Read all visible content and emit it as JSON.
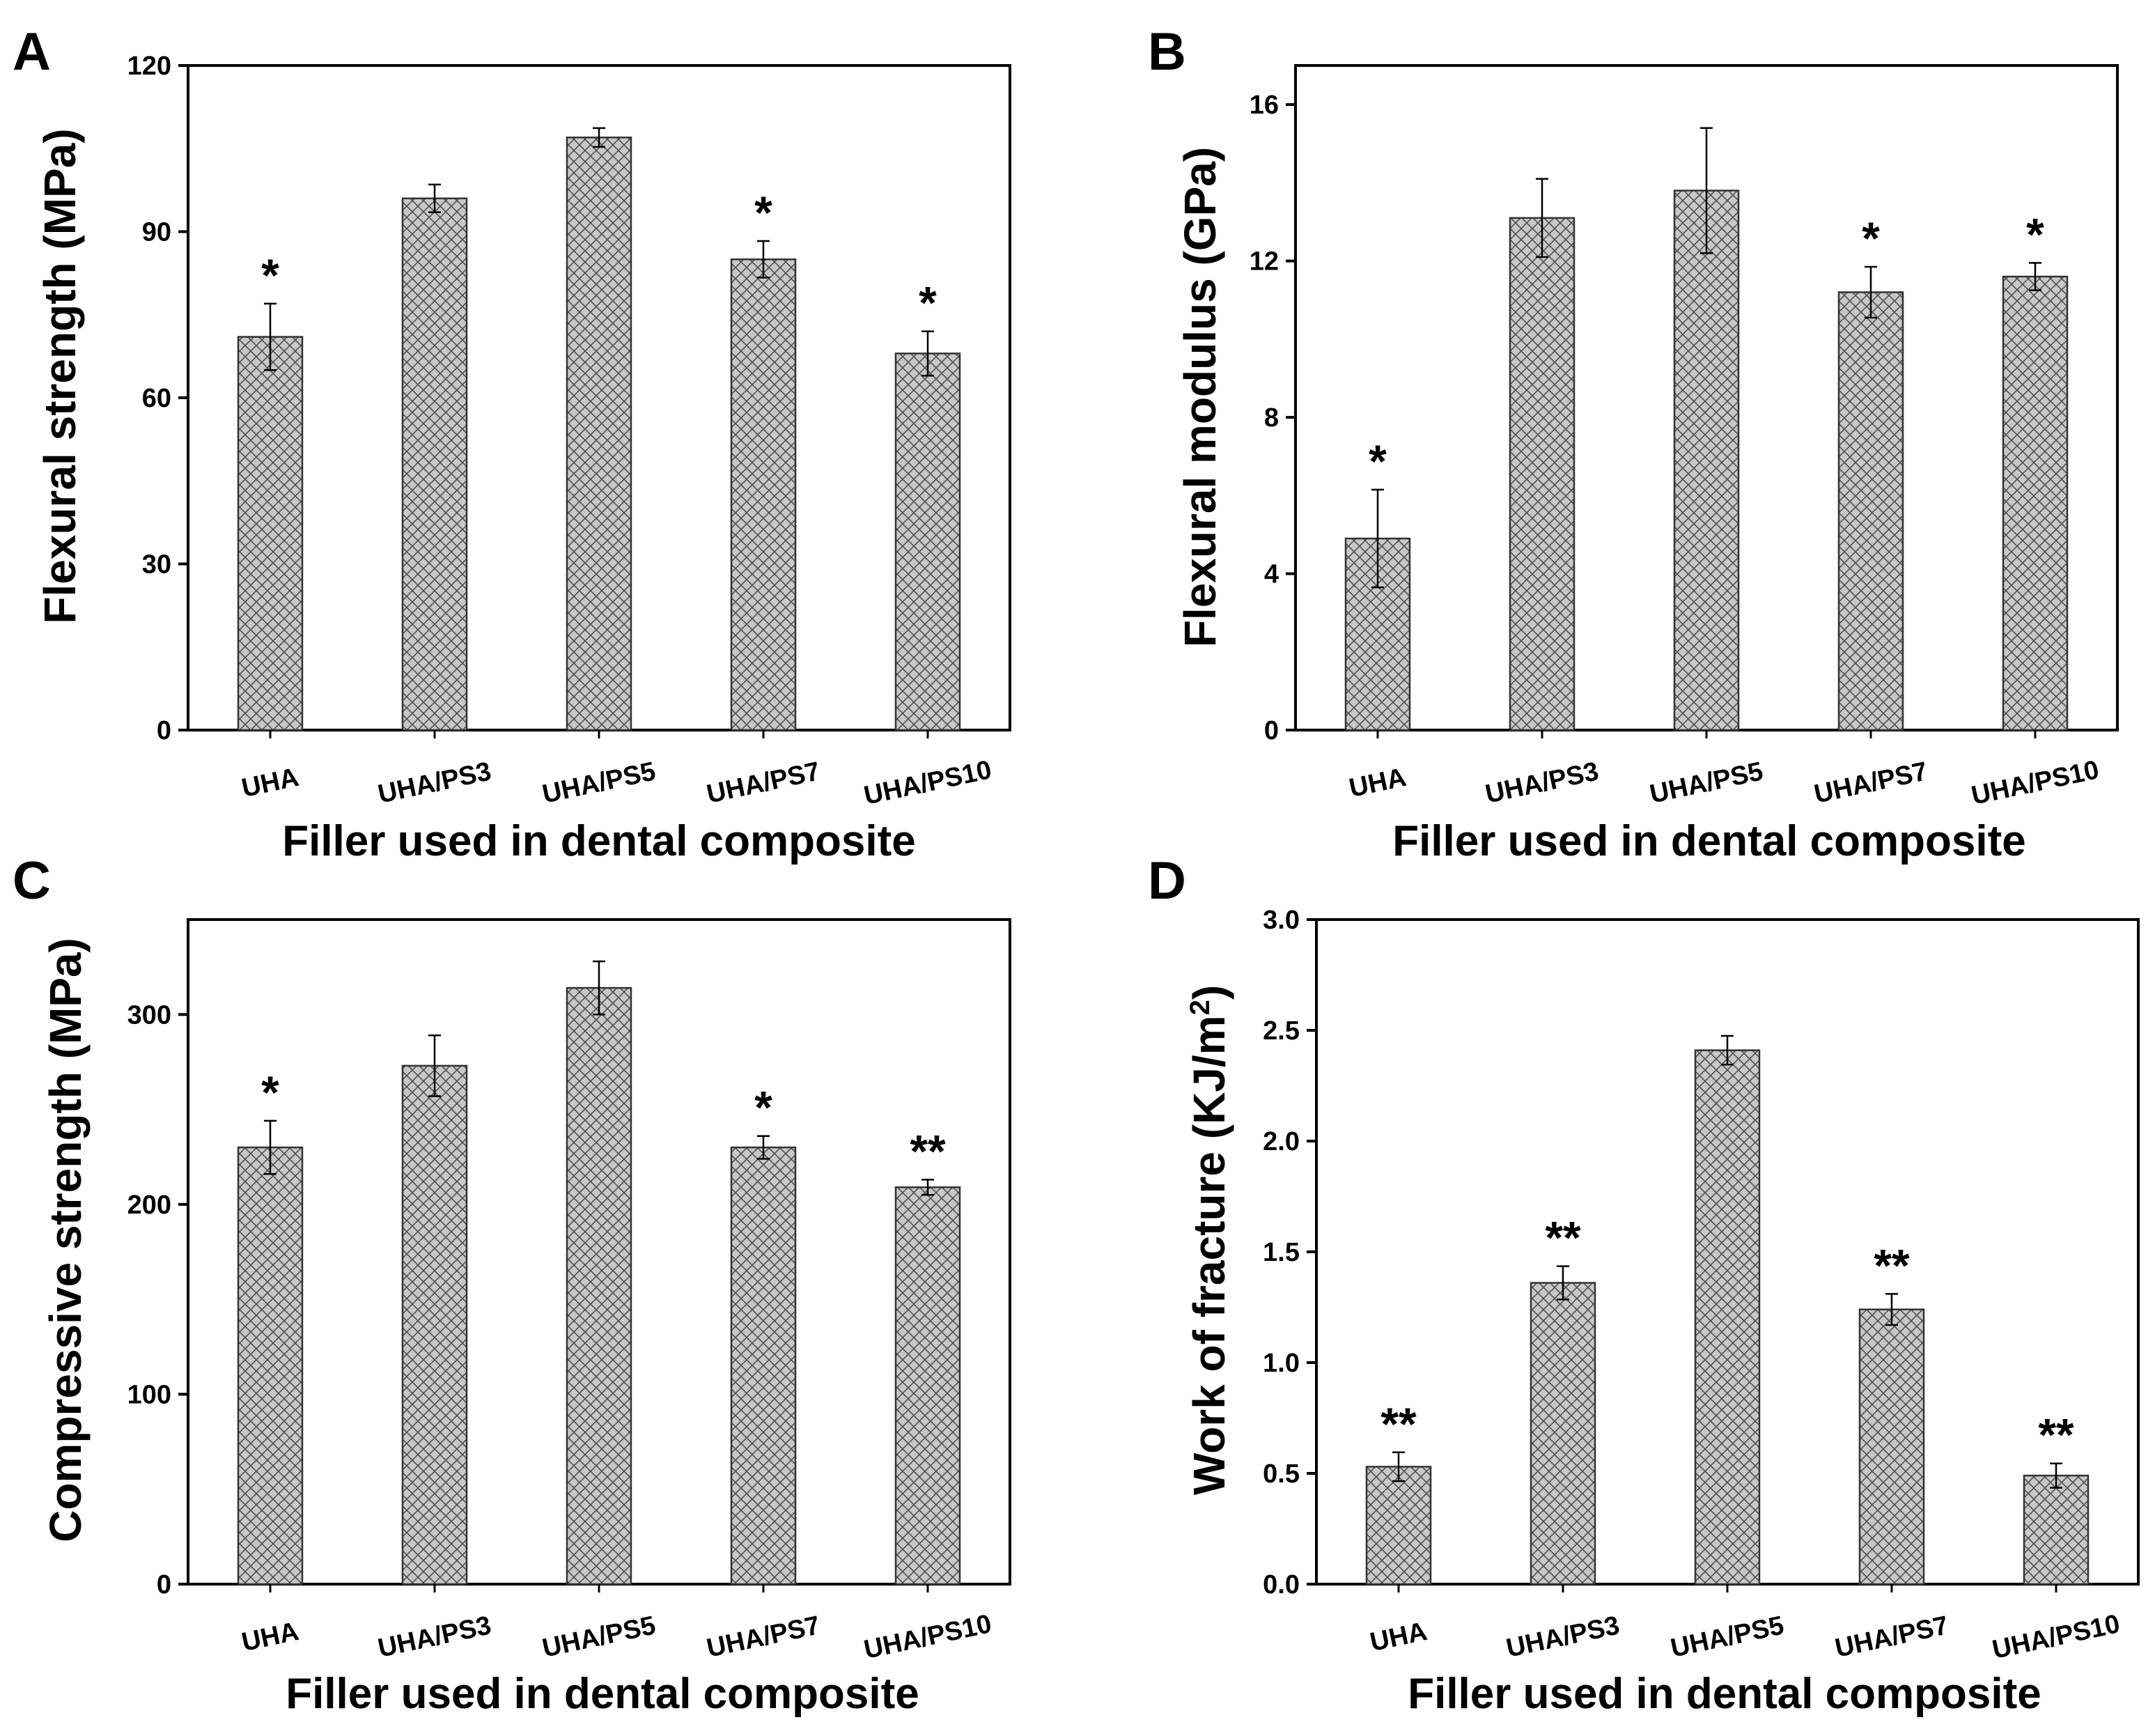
{
  "chart_data": [
    {
      "panel": "A",
      "type": "bar",
      "title": "",
      "xlabel": "Filler used in dental composite",
      "ylabel": "Flexural strength (MPa)",
      "categories": [
        "UHA",
        "UHA/PS3",
        "UHA/PS5",
        "UHA/PS7",
        "UHA/PS10"
      ],
      "values": [
        71,
        96,
        107,
        85,
        68
      ],
      "errors": [
        6,
        2.5,
        1.7,
        3.3,
        4
      ],
      "significance": [
        "*",
        "",
        "",
        "*",
        "*"
      ],
      "yticks": [
        0,
        30,
        60,
        90,
        120
      ],
      "ylim": [
        0,
        120
      ],
      "grid": false
    },
    {
      "panel": "B",
      "type": "bar",
      "title": "",
      "xlabel": "Filler used in dental composite",
      "ylabel": "Flexural modulus (GPa)",
      "categories": [
        "UHA",
        "UHA/PS3",
        "UHA/PS5",
        "UHA/PS7",
        "UHA/PS10"
      ],
      "values": [
        4.9,
        13.1,
        13.8,
        11.2,
        11.6
      ],
      "errors": [
        1.25,
        1.0,
        1.6,
        0.65,
        0.35
      ],
      "significance": [
        "*",
        "",
        "",
        "*",
        "*"
      ],
      "yticks": [
        0,
        4,
        8,
        12,
        16
      ],
      "ylim": [
        0,
        17
      ],
      "grid": false
    },
    {
      "panel": "C",
      "type": "bar",
      "title": "",
      "xlabel": "Filler used in dental composite",
      "ylabel": "Compressive strength (MPa)",
      "categories": [
        "UHA",
        "UHA/PS3",
        "UHA/PS5",
        "UHA/PS7",
        "UHA/PS10"
      ],
      "values": [
        230,
        273,
        314,
        230,
        209
      ],
      "errors": [
        14,
        16,
        14,
        6,
        4
      ],
      "significance": [
        "*",
        "",
        "",
        "*",
        "**"
      ],
      "yticks": [
        0,
        100,
        200,
        300
      ],
      "ylim": [
        0,
        350
      ],
      "grid": false
    },
    {
      "panel": "D",
      "type": "bar",
      "title": "",
      "xlabel": "Filler used in dental composite",
      "ylabel": "Work of fracture (KJ/m",
      "ylabel_sup": "2",
      "ylabel_end": ")",
      "categories": [
        "UHA",
        "UHA/PS3",
        "UHA/PS5",
        "UHA/PS7",
        "UHA/PS10"
      ],
      "values": [
        0.53,
        1.36,
        2.41,
        1.24,
        0.49
      ],
      "errors": [
        0.065,
        0.075,
        0.065,
        0.07,
        0.055
      ],
      "significance": [
        "**",
        "**",
        "",
        "**",
        "**"
      ],
      "yticks": [
        "0.0",
        "0.5",
        "1.0",
        "1.5",
        "2.0",
        "2.5",
        "3.0"
      ],
      "ylim": [
        0,
        3
      ],
      "grid": false
    }
  ],
  "style": {
    "bar_fill": "#c8c8c8",
    "hatch_color": "#505050",
    "axis_color": "#000000"
  }
}
